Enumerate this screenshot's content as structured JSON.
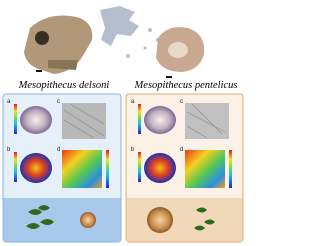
{
  "figure": {
    "species": [
      {
        "name": "Mesopithecus delsoni",
        "panels": [
          "a",
          "b",
          "c",
          "d"
        ]
      },
      {
        "name": "Mesopithecus pentelicus",
        "panels": [
          "a",
          "b",
          "c",
          "d"
        ]
      }
    ]
  }
}
